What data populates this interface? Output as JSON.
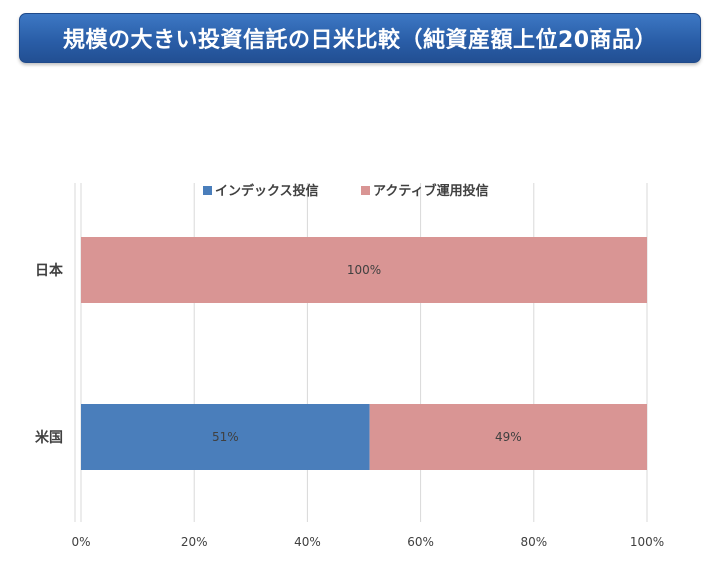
{
  "title": "規模の大きい投資信託の日米比較（純資産額上位20商品）",
  "chart_data": {
    "type": "bar",
    "orientation": "horizontal",
    "stacked": true,
    "percent_stacked": true,
    "categories": [
      "日本",
      "米国"
    ],
    "series": [
      {
        "name": "インデックス投信",
        "color": "#4a7ebb",
        "values": [
          0,
          51
        ],
        "labels": [
          "",
          "51%"
        ]
      },
      {
        "name": "アクティブ運用投信",
        "color": "#d99594",
        "values": [
          100,
          49
        ],
        "labels": [
          "100%",
          "49%"
        ]
      }
    ],
    "xlim": [
      0,
      100
    ],
    "xticks": [
      "0%",
      "20%",
      "40%",
      "60%",
      "80%",
      "100%"
    ],
    "grid": true,
    "legend_position": "top"
  }
}
